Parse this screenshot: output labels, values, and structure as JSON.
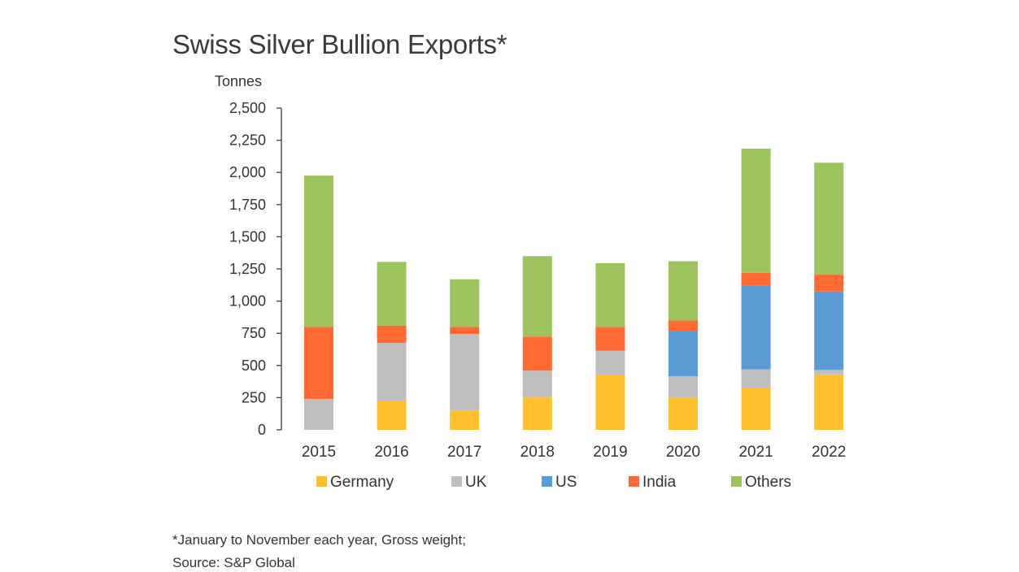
{
  "chart_data": {
    "type": "bar",
    "stacked": true,
    "title": "Swiss Silver Bullion Exports*",
    "ylabel": "Tonnes",
    "xlabel": "",
    "ylim": [
      0,
      2500
    ],
    "yticks": [
      0,
      250,
      500,
      750,
      1000,
      1250,
      1500,
      1750,
      2000,
      2250,
      2500
    ],
    "ytick_labels": [
      "0",
      "250",
      "500",
      "750",
      "1,000",
      "1,250",
      "1,500",
      "1,750",
      "2,000",
      "2,250",
      "2,500"
    ],
    "grid": false,
    "legend_position": "bottom",
    "categories": [
      "2015",
      "2016",
      "2017",
      "2018",
      "2019",
      "2020",
      "2021",
      "2022"
    ],
    "series": [
      {
        "name": "Germany",
        "color": "#FFC02B",
        "values": [
          0,
          225,
          150,
          255,
          430,
          250,
          325,
          430
        ]
      },
      {
        "name": "UK",
        "color": "#BFBFBF",
        "values": [
          240,
          450,
          595,
          205,
          185,
          165,
          145,
          35
        ]
      },
      {
        "name": "US",
        "color": "#5B9BD5",
        "values": [
          0,
          0,
          0,
          0,
          0,
          355,
          650,
          610
        ]
      },
      {
        "name": "India",
        "color": "#FF6A33",
        "values": [
          560,
          135,
          55,
          265,
          185,
          80,
          100,
          130
        ]
      },
      {
        "name": "Others",
        "color": "#9DC35C",
        "values": [
          1175,
          495,
          370,
          625,
          495,
          460,
          965,
          870
        ]
      }
    ]
  },
  "footnote": {
    "line1": "*January to November each year, Gross weight;",
    "line2": "Source: S&P Global"
  }
}
